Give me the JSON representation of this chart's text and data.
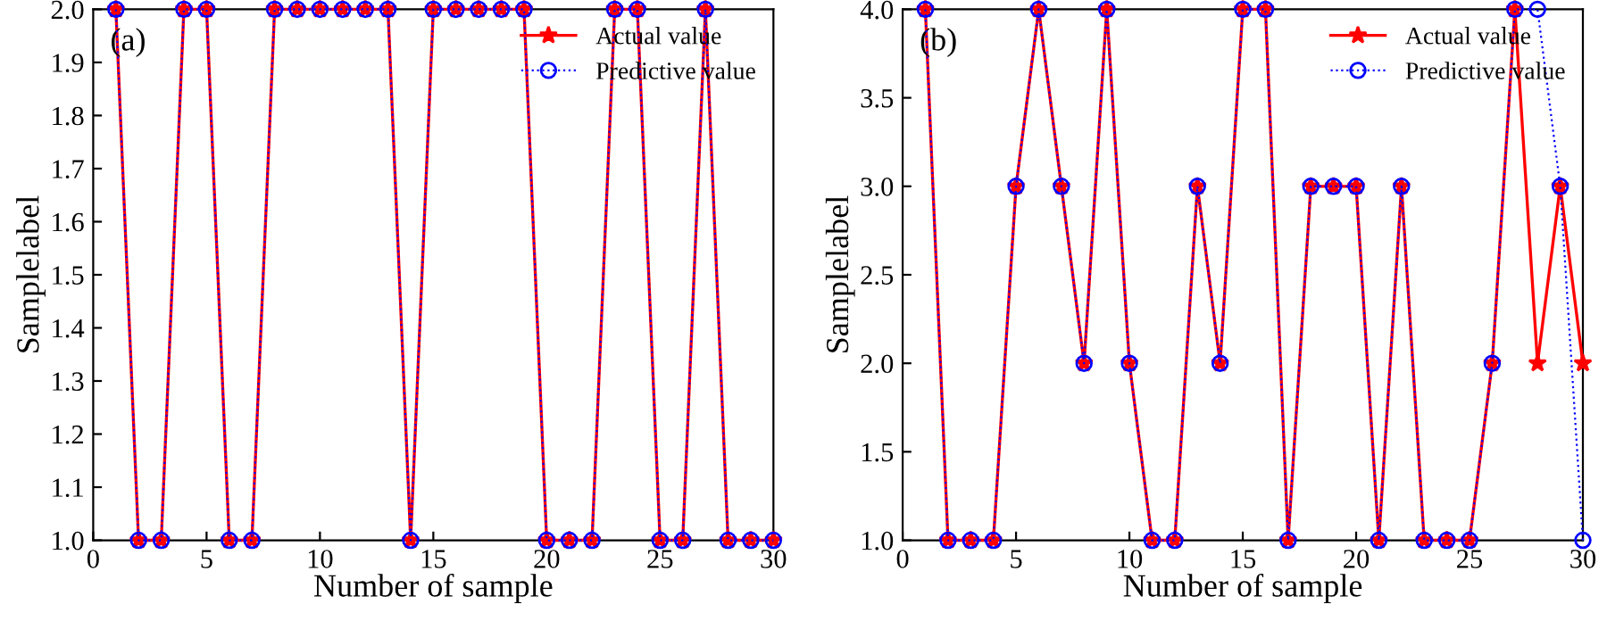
{
  "chart_data": [
    {
      "type": "line",
      "title": "(a)",
      "xlabel": "Number of sample",
      "ylabel": "Samplelabel",
      "x": [
        1,
        2,
        3,
        4,
        5,
        6,
        7,
        8,
        9,
        10,
        11,
        12,
        13,
        14,
        15,
        16,
        17,
        18,
        19,
        20,
        21,
        22,
        23,
        24,
        25,
        26,
        27,
        28,
        29,
        30
      ],
      "series": [
        {
          "name": "Actual value",
          "color": "#ff0000",
          "marker": "star",
          "line_style": "solid",
          "values": [
            2,
            1,
            1,
            2,
            2,
            1,
            1,
            2,
            2,
            2,
            2,
            2,
            2,
            1,
            2,
            2,
            2,
            2,
            2,
            1,
            1,
            1,
            2,
            2,
            1,
            1,
            2,
            1,
            1,
            1
          ]
        },
        {
          "name": "Predictive value",
          "color": "#0000ff",
          "marker": "circle",
          "line_style": "dotted",
          "values": [
            2,
            1,
            1,
            2,
            2,
            1,
            1,
            2,
            2,
            2,
            2,
            2,
            2,
            1,
            2,
            2,
            2,
            2,
            2,
            1,
            1,
            1,
            2,
            2,
            1,
            1,
            2,
            1,
            1,
            1
          ]
        }
      ],
      "xlim": [
        0,
        30
      ],
      "xticks": [
        0,
        5,
        10,
        15,
        20,
        25,
        30
      ],
      "ylim": [
        1,
        2
      ],
      "yticks": [
        {
          "value": 1.0,
          "label": "1.0"
        },
        {
          "value": 1.1,
          "label": "1.1"
        },
        {
          "value": 1.2,
          "label": "1.2"
        },
        {
          "value": 1.3,
          "label": "1.3"
        },
        {
          "value": 1.4,
          "label": "1.4"
        },
        {
          "value": 1.5,
          "label": "1.5"
        },
        {
          "value": 1.6,
          "label": "1.6"
        },
        {
          "value": 1.7,
          "label": "1.7"
        },
        {
          "value": 1.8,
          "label": "1.8"
        },
        {
          "value": 1.9,
          "label": "1.9"
        },
        {
          "value": 2.0,
          "label": "2.0"
        }
      ],
      "legend": "top right"
    },
    {
      "type": "line",
      "title": "(b)",
      "xlabel": "Number of sample",
      "ylabel": "Samplelabel",
      "x": [
        1,
        2,
        3,
        4,
        5,
        6,
        7,
        8,
        9,
        10,
        11,
        12,
        13,
        14,
        15,
        16,
        17,
        18,
        19,
        20,
        21,
        22,
        23,
        24,
        25,
        26,
        27,
        28,
        29,
        30
      ],
      "series": [
        {
          "name": "Actual value",
          "color": "#ff0000",
          "marker": "star",
          "line_style": "solid",
          "values": [
            4,
            1,
            1,
            1,
            3,
            4,
            3,
            2,
            4,
            2,
            1,
            1,
            3,
            2,
            4,
            4,
            1,
            3,
            3,
            3,
            1,
            3,
            1,
            1,
            1,
            2,
            4,
            2,
            3,
            2
          ]
        },
        {
          "name": "Predictive value",
          "color": "#0000ff",
          "marker": "circle",
          "line_style": "dotted",
          "values": [
            4,
            1,
            1,
            1,
            3,
            4,
            3,
            2,
            4,
            2,
            1,
            1,
            3,
            2,
            4,
            4,
            1,
            3,
            3,
            3,
            1,
            3,
            1,
            1,
            1,
            2,
            4,
            4,
            3,
            1
          ]
        }
      ],
      "xlim": [
        0,
        30
      ],
      "xticks": [
        0,
        5,
        10,
        15,
        20,
        25,
        30
      ],
      "ylim": [
        1,
        4
      ],
      "yticks": [
        {
          "value": 1.0,
          "label": "1.0"
        },
        {
          "value": 1.5,
          "label": "1.5"
        },
        {
          "value": 2.0,
          "label": "2.0"
        },
        {
          "value": 2.5,
          "label": "2.5"
        },
        {
          "value": 3.0,
          "label": "3.0"
        },
        {
          "value": 3.5,
          "label": "3.5"
        },
        {
          "value": 4.0,
          "label": "4.0"
        }
      ],
      "legend": "top right"
    }
  ]
}
